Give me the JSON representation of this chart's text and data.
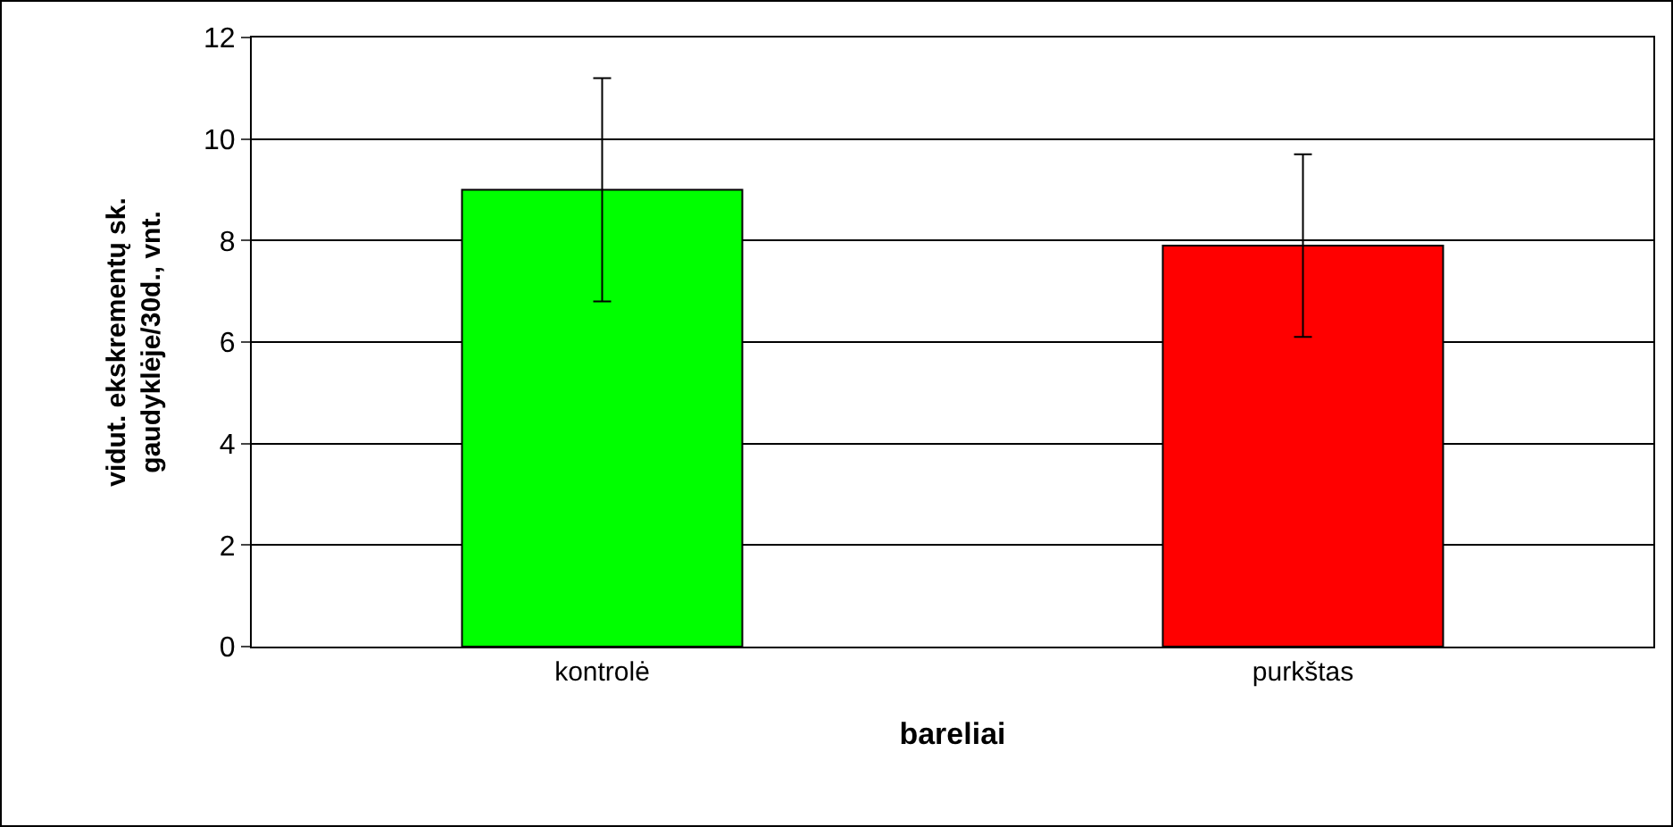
{
  "chart_data": {
    "type": "bar",
    "xlabel": "bareliai",
    "ylabel": "vidut. ekskrementų sk. gaudyklėje/30d., vnt.",
    "categories": [
      "kontrolė",
      "purkštas"
    ],
    "values": [
      9.0,
      7.9
    ],
    "colors": [
      "#00ff00",
      "#ff0000"
    ],
    "errors": [
      2.2,
      1.8
    ],
    "ylim": [
      0,
      12
    ],
    "yticks": [
      0,
      2,
      4,
      6,
      8,
      10,
      12
    ],
    "grid": "y"
  }
}
